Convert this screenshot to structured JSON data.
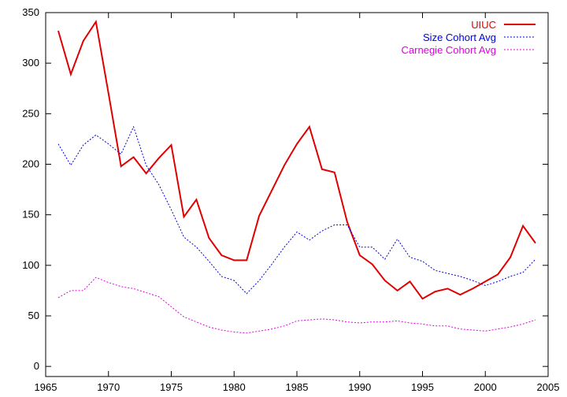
{
  "chart_data": {
    "type": "line",
    "title": "",
    "xlabel": "",
    "ylabel": "",
    "xlim": [
      1965,
      2005
    ],
    "ylim": [
      -10,
      350
    ],
    "xticks": [
      1965,
      1970,
      1975,
      1980,
      1985,
      1990,
      1995,
      2000,
      2005
    ],
    "yticks": [
      0,
      50,
      100,
      150,
      200,
      250,
      300,
      350
    ],
    "grid": false,
    "legend_position": "top-right",
    "x": [
      1966,
      1967,
      1968,
      1969,
      1970,
      1971,
      1972,
      1973,
      1974,
      1975,
      1976,
      1977,
      1978,
      1979,
      1980,
      1981,
      1982,
      1983,
      1984,
      1985,
      1986,
      1987,
      1988,
      1989,
      1990,
      1991,
      1992,
      1993,
      1994,
      1995,
      1996,
      1997,
      1998,
      1999,
      2000,
      2001,
      2002,
      2003,
      2004
    ],
    "series": [
      {
        "name": "UIUC",
        "color": "#e00000",
        "style": "solid",
        "values": [
          332,
          289,
          322,
          341,
          270,
          198,
          207,
          191,
          206,
          219,
          148,
          165,
          127,
          110,
          105,
          105,
          149,
          174,
          199,
          220,
          237,
          195,
          192,
          143,
          110,
          101,
          85,
          75,
          84,
          67,
          74,
          77,
          71,
          77,
          84,
          91,
          108,
          139,
          122
        ]
      },
      {
        "name": "Size Cohort Avg",
        "color": "#0000e0",
        "style": "dotted",
        "values": [
          220,
          199,
          219,
          229,
          220,
          210,
          237,
          199,
          180,
          155,
          128,
          118,
          104,
          89,
          85,
          72,
          85,
          101,
          118,
          133,
          125,
          134,
          140,
          140,
          118,
          118,
          106,
          126,
          108,
          104,
          95,
          92,
          89,
          85,
          80,
          84,
          89,
          93,
          106
        ]
      },
      {
        "name": "Carnegie Cohort Avg",
        "color": "#e000e0",
        "style": "dotted",
        "values": [
          68,
          75,
          75,
          88,
          83,
          79,
          77,
          73,
          69,
          59,
          49,
          44,
          39,
          36,
          34,
          33,
          35,
          37,
          40,
          45,
          46,
          47,
          46,
          44,
          43,
          44,
          44,
          45,
          43,
          42,
          40,
          40,
          37,
          36,
          35,
          37,
          39,
          42,
          46
        ]
      }
    ]
  }
}
